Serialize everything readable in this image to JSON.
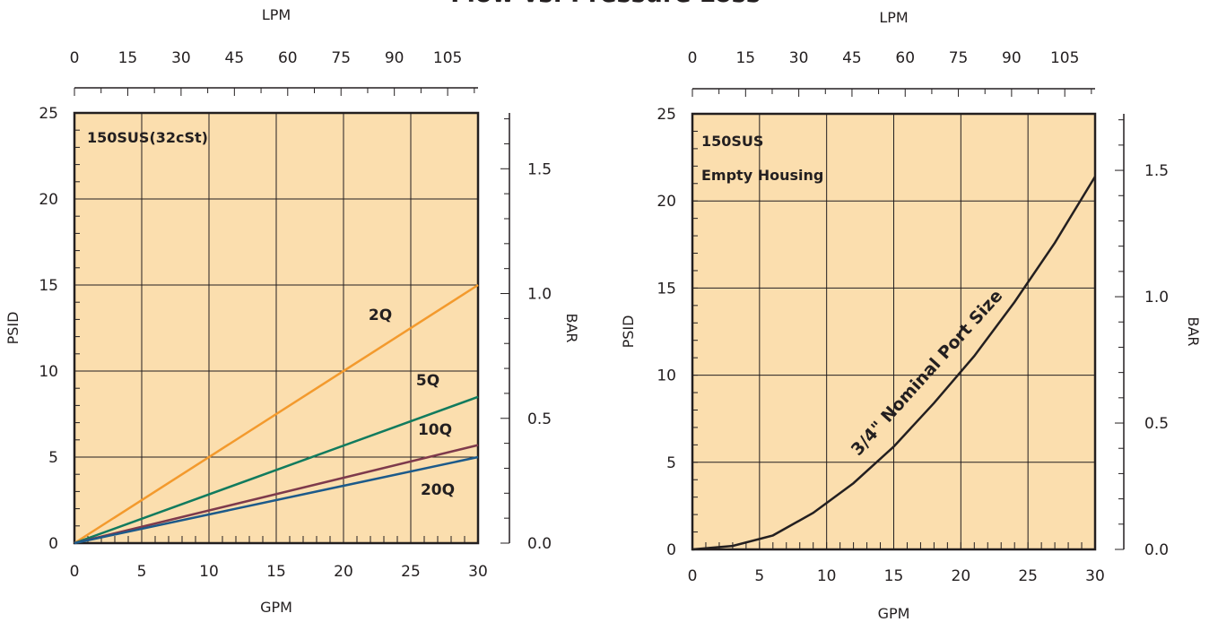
{
  "title": "Flow vs. Pressure Loss",
  "colors": {
    "plot_bg": "#fbdeae",
    "frame": "#231f20",
    "grid": "#231f20",
    "text": "#231f20"
  },
  "chart_data": [
    {
      "type": "line",
      "xlabel": "GPM",
      "ylabel": "PSID",
      "secondary_xlabel": "LPM",
      "secondary_ylabel": "BAR",
      "xlim": [
        0,
        30
      ],
      "ylim": [
        0,
        25
      ],
      "x_ticks": [
        0,
        5,
        10,
        15,
        20,
        25,
        30
      ],
      "y_ticks": [
        0,
        5,
        10,
        15,
        20,
        25
      ],
      "lpm_ticks": [
        0,
        15,
        30,
        45,
        60,
        75,
        90,
        105
      ],
      "bar_ticks": [
        "0.0",
        "0.5",
        "1.0",
        "1.5"
      ],
      "grid": true,
      "annotations": [
        "150SUS(32cSt)"
      ],
      "series": [
        {
          "name": "2Q",
          "color": "#f39a2d",
          "x": [
            0,
            30
          ],
          "y": [
            0,
            15
          ]
        },
        {
          "name": "5Q",
          "color": "#117b5e",
          "x": [
            0,
            30
          ],
          "y": [
            0,
            8.5
          ]
        },
        {
          "name": "10Q",
          "color": "#7e3a4c",
          "x": [
            0,
            30
          ],
          "y": [
            0,
            5.7
          ]
        },
        {
          "name": "20Q",
          "color": "#1c5a8a",
          "x": [
            0,
            30
          ],
          "y": [
            0,
            5.0
          ]
        }
      ]
    },
    {
      "type": "line",
      "xlabel": "GPM",
      "ylabel": "PSID",
      "secondary_xlabel": "LPM",
      "secondary_ylabel": "BAR",
      "xlim": [
        0,
        30
      ],
      "ylim": [
        0,
        25
      ],
      "x_ticks": [
        0,
        5,
        10,
        15,
        20,
        25,
        30
      ],
      "y_ticks": [
        0,
        5,
        10,
        15,
        20,
        25
      ],
      "lpm_ticks": [
        0,
        15,
        30,
        45,
        60,
        75,
        90,
        105
      ],
      "bar_ticks": [
        "0.0",
        "0.5",
        "1.0",
        "1.5"
      ],
      "grid": true,
      "annotations": [
        "150SUS",
        "Empty Housing"
      ],
      "series": [
        {
          "name": "3/4\" Nominal Port Size",
          "color": "#231f20",
          "x": [
            0,
            3,
            6,
            9,
            12,
            15,
            18,
            21,
            24,
            27,
            30
          ],
          "y": [
            0,
            0.2,
            0.8,
            2.1,
            3.8,
            5.9,
            8.4,
            11.1,
            14.2,
            17.6,
            21.4
          ]
        }
      ]
    }
  ]
}
